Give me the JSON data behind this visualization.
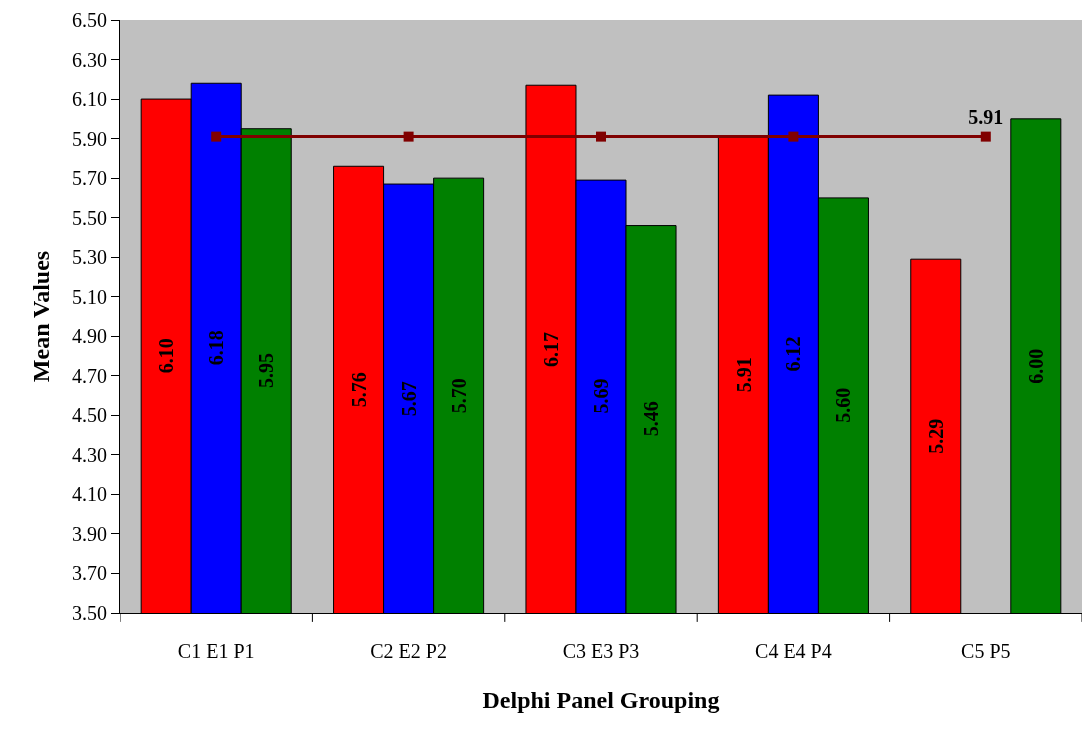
{
  "chart_data": {
    "type": "bar",
    "xlabel": "Delphi Panel Grouping",
    "ylabel": "Mean Values",
    "categories": [
      "C1 E1 P1",
      "C2 E2 P2",
      "C3 E3 P3",
      "C4 E4 P4",
      "C5 P5"
    ],
    "series": [
      {
        "color": "#ff0000",
        "values": [
          6.1,
          5.76,
          6.17,
          5.91,
          5.29
        ],
        "value_labels": [
          "6.10",
          "5.76",
          "6.17",
          "5.91",
          "5.29"
        ]
      },
      {
        "color": "#0000ff",
        "values": [
          6.18,
          5.67,
          5.69,
          6.12,
          null
        ],
        "value_labels": [
          "6.18",
          "5.67",
          "5.69",
          "6.12",
          null
        ]
      },
      {
        "color": "#008000",
        "values": [
          5.95,
          5.7,
          5.46,
          5.6,
          6.0
        ],
        "value_labels": [
          "5.95",
          "5.70",
          "5.46",
          "5.60",
          "6.00"
        ]
      },
      {
        "type": "line",
        "color": "#800000",
        "marker": "square",
        "values": [
          5.91,
          5.91,
          5.91,
          5.91,
          5.91
        ],
        "value_labels": [
          null,
          null,
          null,
          null,
          "5.91"
        ]
      }
    ],
    "ylim": [
      3.5,
      6.5
    ],
    "yticks": [
      {
        "value": 3.5,
        "label": "3.50"
      },
      {
        "value": 3.7,
        "label": "3.70"
      },
      {
        "value": 3.9,
        "label": "3.90"
      },
      {
        "value": 4.1,
        "label": "4.10"
      },
      {
        "value": 4.3,
        "label": "4.30"
      },
      {
        "value": 4.5,
        "label": "4.50"
      },
      {
        "value": 4.7,
        "label": "4.70"
      },
      {
        "value": 4.9,
        "label": "4.90"
      },
      {
        "value": 5.1,
        "label": "5.10"
      },
      {
        "value": 5.3,
        "label": "5.30"
      },
      {
        "value": 5.5,
        "label": "5.50"
      },
      {
        "value": 5.7,
        "label": "5.70"
      },
      {
        "value": 5.9,
        "label": "5.90"
      },
      {
        "value": 6.1,
        "label": "6.10"
      },
      {
        "value": 6.3,
        "label": "6.30"
      },
      {
        "value": 6.5,
        "label": "6.50"
      }
    ],
    "grid": false,
    "legend": false
  }
}
